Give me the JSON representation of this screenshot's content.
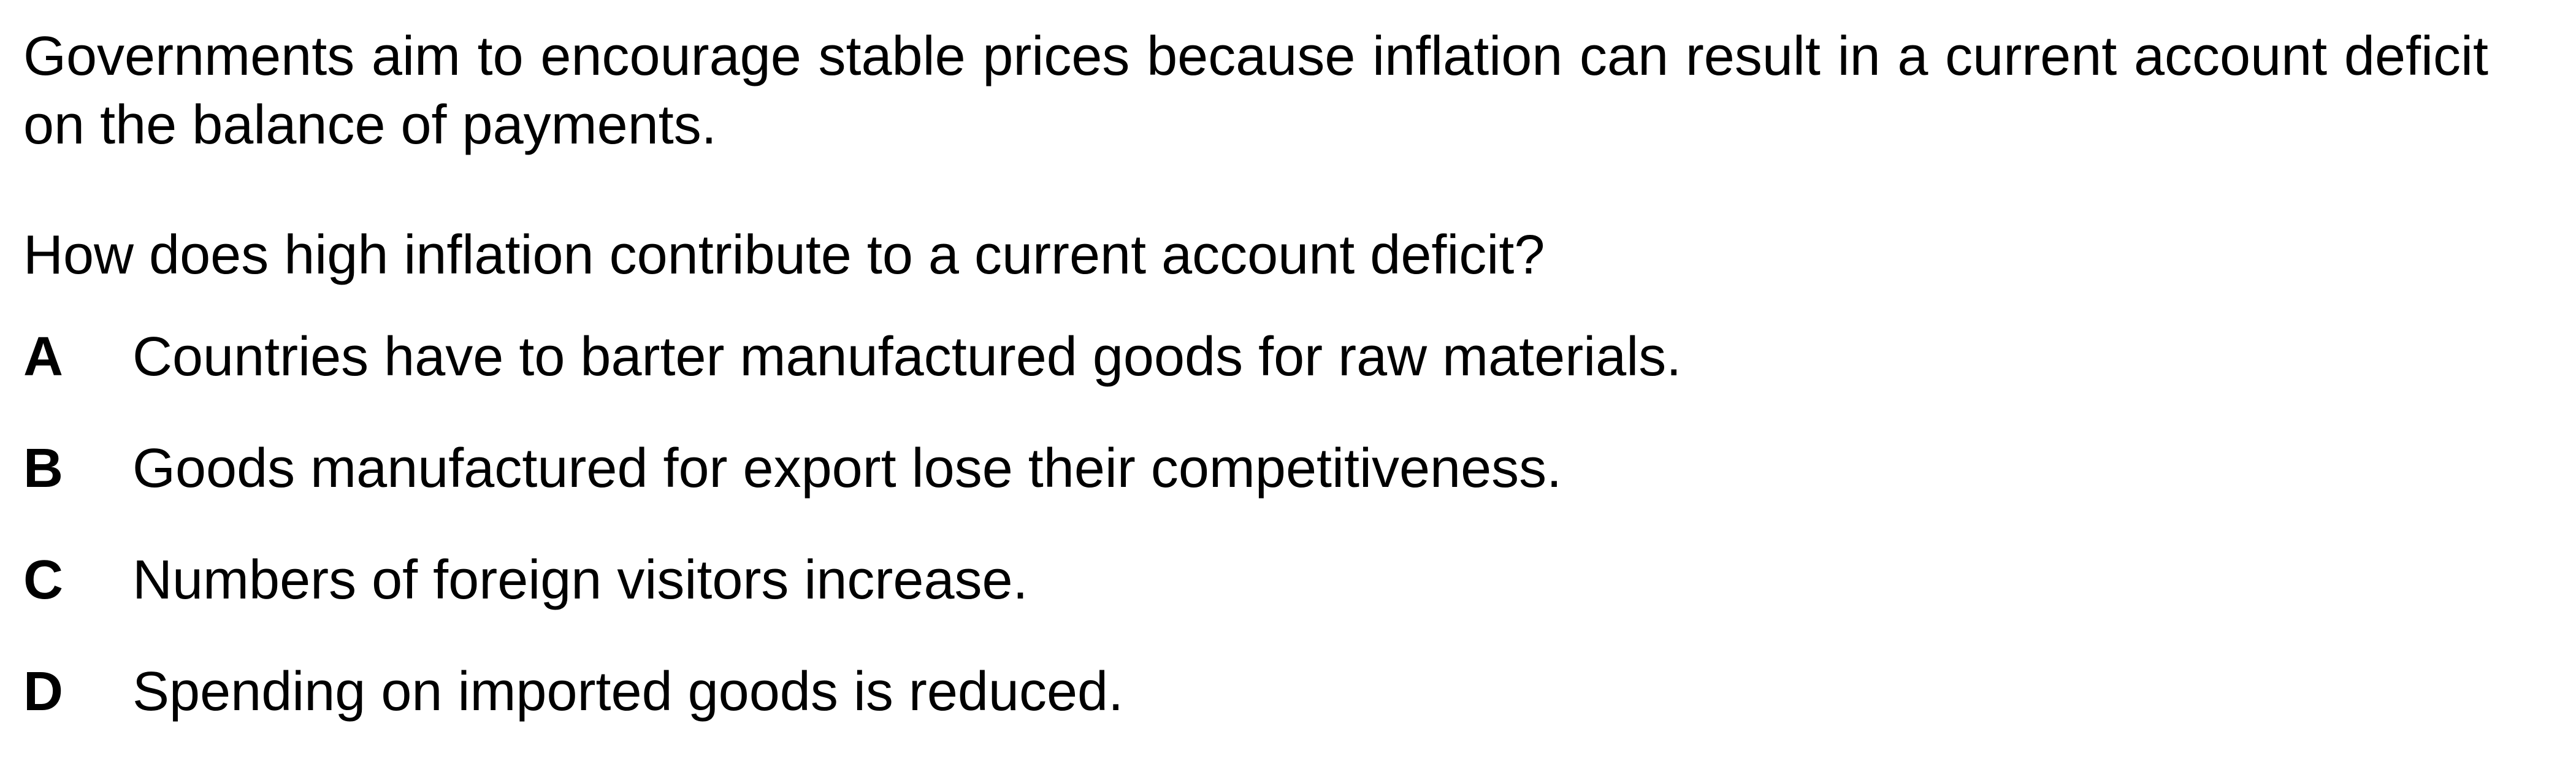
{
  "question": {
    "stem": "Governments aim to encourage stable prices because inflation can result in a current account deficit on the balance of payments.",
    "prompt": "How does high inflation contribute to a current account deficit?",
    "options": [
      {
        "letter": "A",
        "text": "Countries have to barter manufactured goods for raw materials."
      },
      {
        "letter": "B",
        "text": "Goods manufactured for export lose their competitiveness."
      },
      {
        "letter": "C",
        "text": "Numbers of foreign visitors increase."
      },
      {
        "letter": "D",
        "text": "Spending on imported goods is reduced."
      }
    ]
  }
}
